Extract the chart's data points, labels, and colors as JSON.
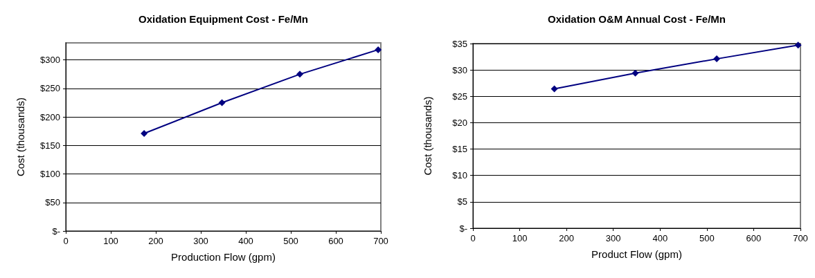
{
  "chart_data": [
    {
      "type": "line",
      "title": "Oxidation Equipment Cost - Fe/Mn",
      "xlabel": "Production Flow (gpm)",
      "ylabel": "Cost (thousands)",
      "x": [
        174,
        347,
        520,
        694
      ],
      "series": [
        {
          "color": "#000080",
          "values": [
            171,
            225,
            275,
            318
          ]
        }
      ],
      "xlim": [
        0,
        700
      ],
      "xticks": [
        0,
        100,
        200,
        300,
        400,
        500,
        600,
        700
      ],
      "ylim": [
        0,
        330
      ],
      "yticks": [
        {
          "value": 0,
          "label": "$-"
        },
        {
          "value": 50,
          "label": "$50"
        },
        {
          "value": 100,
          "label": "$100"
        },
        {
          "value": 150,
          "label": "$150"
        },
        {
          "value": 200,
          "label": "$200"
        },
        {
          "value": 250,
          "label": "$250"
        },
        {
          "value": 300,
          "label": "$300"
        }
      ],
      "grid": "y",
      "marker": "diamond",
      "line_style": "solid"
    },
    {
      "type": "line",
      "title": "Oxidation O&M Annual Cost - Fe/Mn",
      "xlabel": "Product Flow (gpm)",
      "ylabel": "Cost (thousands)",
      "x": [
        174,
        347,
        521,
        695
      ],
      "series": [
        {
          "color": "#000080",
          "values": [
            26.4,
            29.4,
            32.1,
            34.7
          ]
        }
      ],
      "xlim": [
        0,
        700
      ],
      "xticks": [
        0,
        100,
        200,
        300,
        400,
        500,
        600,
        700
      ],
      "ylim": [
        0,
        35
      ],
      "yticks": [
        {
          "value": 0,
          "label": "$-"
        },
        {
          "value": 5,
          "label": "$5"
        },
        {
          "value": 10,
          "label": "$10"
        },
        {
          "value": 15,
          "label": "$15"
        },
        {
          "value": 20,
          "label": "$20"
        },
        {
          "value": 25,
          "label": "$25"
        },
        {
          "value": 30,
          "label": "$30"
        },
        {
          "value": 35,
          "label": "$35"
        }
      ],
      "grid": "y",
      "marker": "diamond",
      "line_style": "solid"
    }
  ]
}
